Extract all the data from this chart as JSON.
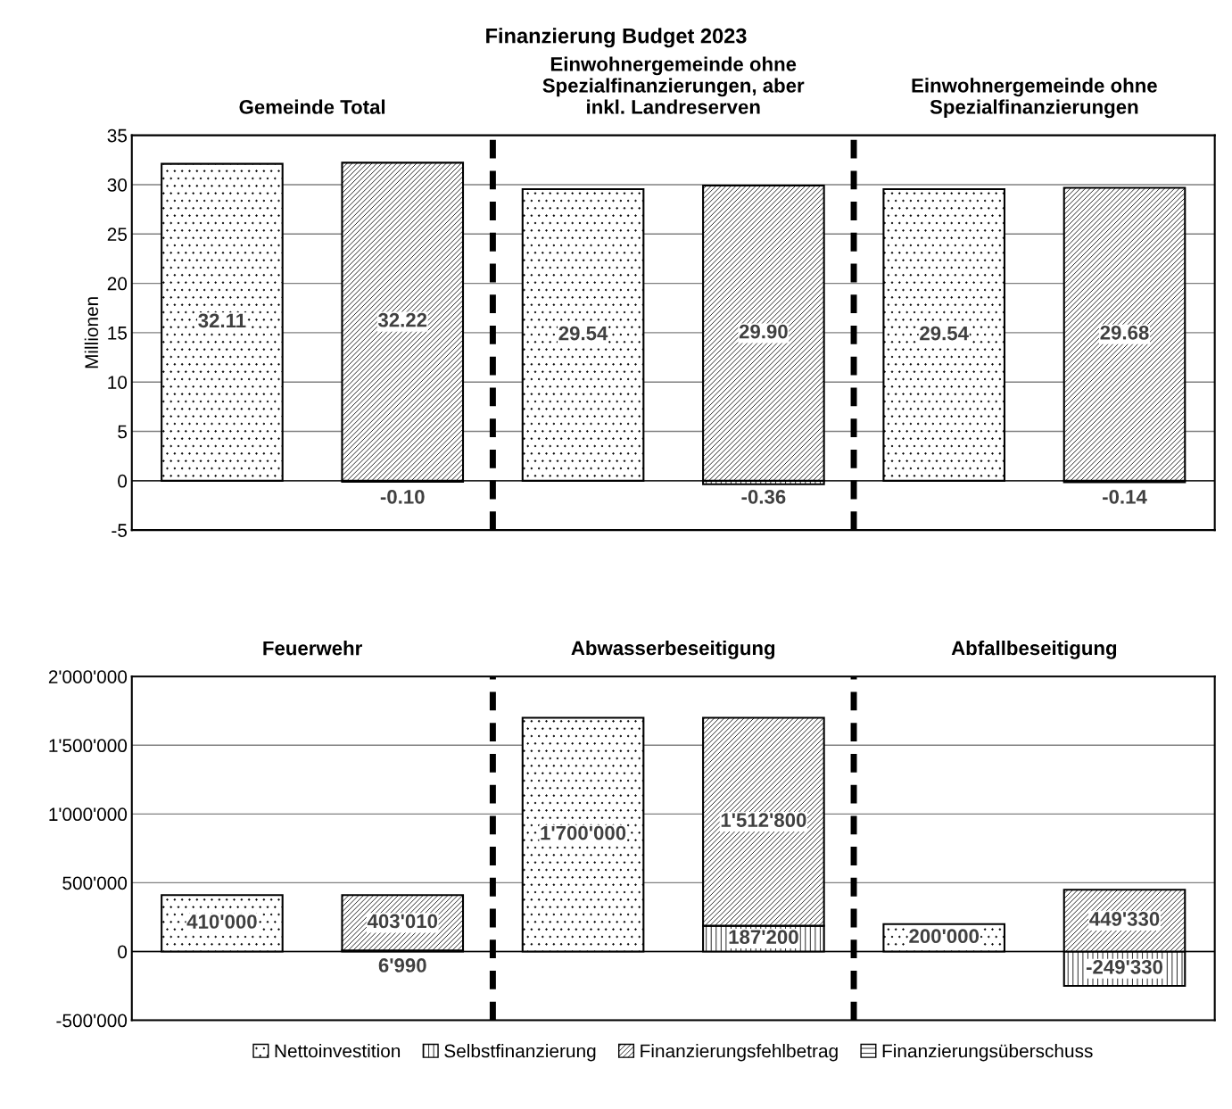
{
  "chart_data": [
    {
      "type": "bar",
      "stacked": true,
      "title": "Finanzierung Budget 2023",
      "ylabel": "Millionen",
      "categories": [
        null,
        null,
        null,
        null,
        null,
        null
      ],
      "annotations": [
        "Gemeinde Total",
        "Einwohnergemeinde ohne\nSpezialfinanzierungen, aber\ninkl. Landreserven",
        "Einwohnergemeinde ohne\nSpezialfinanzierungen"
      ],
      "series": [
        {
          "color": "#000000",
          "values": [
            32.11,
            null,
            29.54,
            null,
            29.54,
            null
          ],
          "value_labels": [
            "32.11",
            null,
            "29.54",
            null,
            "29.54",
            null
          ]
        },
        {
          "color": "#000000",
          "values": [
            null,
            -0.1,
            null,
            -0.36,
            null,
            -0.14
          ],
          "value_labels": [
            null,
            "-0.10",
            null,
            "-0.36",
            null,
            "-0.14"
          ]
        },
        {
          "color": "#000000",
          "values": [
            null,
            32.22,
            null,
            29.9,
            null,
            29.68
          ],
          "value_labels": [
            null,
            "32.22",
            null,
            "29.90",
            null,
            "29.68"
          ]
        }
      ],
      "ylim": [
        -5,
        35
      ],
      "yticks": [
        -5,
        0,
        5,
        10,
        15,
        20,
        25,
        30,
        35
      ],
      "grid": "y"
    },
    {
      "type": "bar",
      "stacked": true,
      "categories": [
        null,
        null,
        null,
        null,
        null,
        null
      ],
      "annotations": [
        "Feuerwehr",
        "Abwasserbeseitigung",
        "Abfallbeseitigung"
      ],
      "series": [
        {
          "name": "Nettoinvestition",
          "color": "#000000",
          "values": [
            410000,
            null,
            1700000,
            null,
            200000,
            null
          ],
          "value_labels": [
            "410'000",
            null,
            "1'700'000",
            null,
            "200'000",
            null
          ]
        },
        {
          "name": "Selbstfinanzierung",
          "color": "#000000",
          "values": [
            null,
            6990,
            null,
            187200,
            null,
            -249330
          ],
          "value_labels": [
            null,
            "6'990",
            null,
            "187'200",
            null,
            "-249'330"
          ]
        },
        {
          "name": "Finanzierungsfehlbetrag",
          "color": "#000000",
          "values": [
            null,
            403010,
            null,
            1512800,
            null,
            449330
          ],
          "value_labels": [
            null,
            "403'010",
            null,
            "1'512'800",
            null,
            "449'330"
          ]
        },
        {
          "name": "Finanzierungsüberschuss",
          "color": "#000000",
          "values": [
            null,
            null,
            null,
            null,
            null,
            null
          ]
        }
      ],
      "ylim": [
        -500000,
        2000000
      ],
      "yticks": [
        {
          "value": -500000,
          "label": "-500'000"
        },
        0,
        {
          "value": 500000,
          "label": "500'000"
        },
        {
          "value": 1000000,
          "label": "1'000'000"
        },
        {
          "value": 1500000,
          "label": "1'500'000"
        },
        {
          "value": 2000000,
          "label": "2'000'000"
        }
      ],
      "grid": "y",
      "legend": "bottom"
    }
  ]
}
